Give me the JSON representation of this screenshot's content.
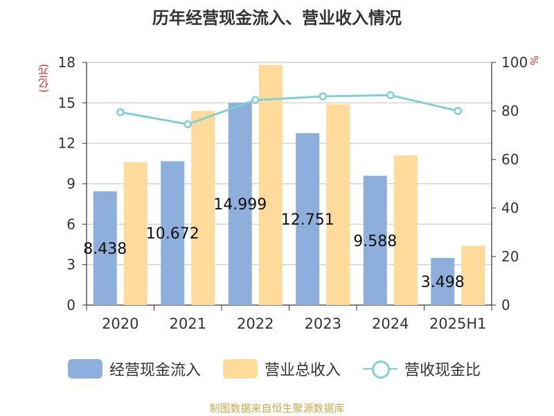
{
  "chart_data": {
    "type": "bar",
    "title": "历年经营现金流入、营业收入情况",
    "ylabel_left": "(亿元)",
    "ylabel_right": "%",
    "categories": [
      "2020",
      "2021",
      "2022",
      "2023",
      "2024",
      "2025H1"
    ],
    "ylim_left": [
      0,
      18
    ],
    "yticks_left": [
      "0",
      "3",
      "6",
      "9",
      "12",
      "15",
      "18"
    ],
    "ylim_right": [
      0,
      100
    ],
    "yticks_right": [
      "0",
      "20",
      "40",
      "60",
      "80",
      "100"
    ],
    "grid": true,
    "legend_position": "bottom",
    "series": [
      {
        "name": "经营现金流入",
        "type": "bar",
        "axis": "left",
        "color": "#8eaedb",
        "values": [
          8.438,
          10.672,
          14.999,
          12.751,
          9.588,
          3.498
        ],
        "labels": [
          "8.438",
          "10.672",
          "14.999",
          "12.751",
          "9.588",
          "3.498"
        ]
      },
      {
        "name": "营业总收入",
        "type": "bar",
        "axis": "left",
        "color": "#fedb9a",
        "values": [
          10.6,
          14.4,
          17.8,
          14.9,
          11.1,
          4.4
        ]
      },
      {
        "name": "营收现金比",
        "type": "line",
        "axis": "right",
        "color": "#7fd0d3",
        "values": [
          79.5,
          74.5,
          84.5,
          86.0,
          86.5,
          80.0
        ]
      }
    ]
  },
  "source_text": "制图数据来自恒生聚源数据库"
}
